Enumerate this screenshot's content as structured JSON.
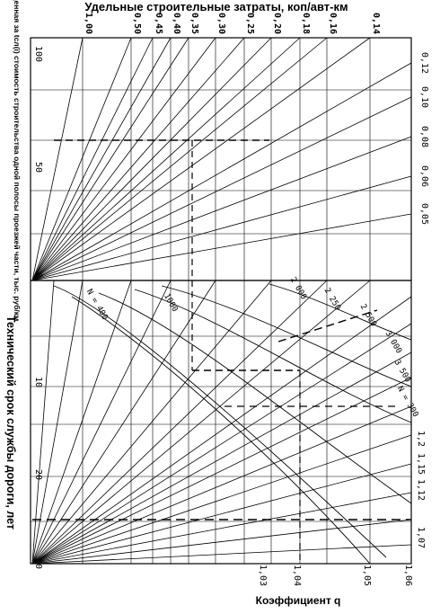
{
  "chart_data": [
    {
      "type": "line",
      "title": "Удельные строительные затраты, коп/авт-км",
      "top_ticks": [
        "1,00",
        "0,50",
        "0,45",
        "0,40",
        "0,35",
        "0,30",
        "0,25",
        "0,20",
        "0,18",
        "0,16",
        "0,14"
      ],
      "right_ticks": [
        "0,12",
        "0,10",
        "0,08",
        "0,06",
        "0,05"
      ],
      "left_axis_label": "Приведенная за tсл(i) стоимость строительства одной полосы проезжей части, тыс. руб/км",
      "left_ticks": [
        "100",
        "50",
        "0"
      ],
      "left_range": [
        0,
        100
      ],
      "ray_slopes": [
        1.0,
        0.5,
        0.45,
        0.4,
        0.35,
        0.3,
        0.25,
        0.2,
        0.18,
        0.16,
        0.14,
        0.12,
        0.1,
        0.08,
        0.06,
        0.05
      ]
    },
    {
      "type": "line",
      "left_axis_label": "Технический срок службы дороги, лет",
      "left_ticks": [
        "10",
        "20",
        "30"
      ],
      "left_range": [
        0,
        30
      ],
      "bottom_label": "Коэффициент q",
      "q_labels": [
        "1,2",
        "1,15",
        "1,12",
        "1,07",
        "1,06",
        "1,05",
        "1,04",
        "1,03"
      ],
      "n_labels": [
        "N = 300",
        "3 500",
        "3 000",
        "2 500",
        "2 250",
        "2 000",
        "1000",
        "N = 400"
      ]
    }
  ]
}
